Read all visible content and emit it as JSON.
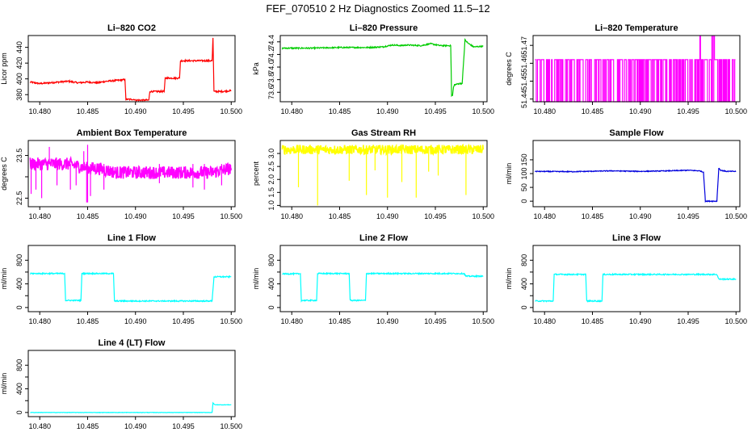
{
  "page": {
    "title": "FEF_070510  2 Hz Diagnostics Zoomed 11.5–12"
  },
  "chart_data": [
    {
      "type": "line",
      "title": "Li–820 CO2",
      "ylabel": "Licor ppm",
      "color": "#ff0000",
      "xlim": [
        10.4788,
        10.5004
      ],
      "ylim": [
        371,
        455
      ],
      "xticks": [
        10.48,
        10.485,
        10.49,
        10.495,
        10.5
      ],
      "xtick_labels": [
        "10.480",
        "10.485",
        "10.490",
        "10.495",
        "10.500"
      ],
      "yticks": [
        380,
        400,
        420,
        440
      ],
      "ytick_labels": [
        "380",
        "400",
        "420",
        "440"
      ],
      "x": [
        10.479,
        10.48,
        10.481,
        10.482,
        10.483,
        10.484,
        10.485,
        10.486,
        10.487,
        10.488,
        10.4889,
        10.489,
        10.4899,
        10.49,
        10.4914,
        10.4915,
        10.493,
        10.4931,
        10.4946,
        10.4947,
        10.498,
        10.4981,
        10.4982,
        10.499,
        10.5
      ],
      "y": [
        396,
        394,
        395,
        396,
        397,
        395,
        396,
        395,
        397,
        398,
        399,
        374,
        374,
        373,
        373,
        384,
        384,
        401,
        401,
        423,
        423,
        452,
        384,
        384,
        385
      ],
      "noise": 1
    },
    {
      "type": "line",
      "title": "Li–820 Pressure",
      "ylabel": "kPa",
      "color": "#00cc00",
      "xlim": [
        10.4788,
        10.5004
      ],
      "ylim": [
        73.45,
        74.5
      ],
      "xticks": [
        10.48,
        10.485,
        10.49,
        10.495,
        10.5
      ],
      "xtick_labels": [
        "10.480",
        "10.485",
        "10.490",
        "10.495",
        "10.500"
      ],
      "yticks": [
        73.6,
        73.8,
        74.0,
        74.2,
        74.4
      ],
      "ytick_labels": [
        "73.6",
        "73.8",
        "74.0",
        "74.2",
        "74.4"
      ],
      "x": [
        10.479,
        10.482,
        10.485,
        10.488,
        10.4895,
        10.4905,
        10.4915,
        10.492,
        10.4935,
        10.4945,
        10.4955,
        10.4966,
        10.4967,
        10.4968,
        10.4969,
        10.497,
        10.4976,
        10.4978,
        10.498,
        10.4981,
        10.4984,
        10.499,
        10.5
      ],
      "y": [
        74.3,
        74.3,
        74.31,
        74.31,
        74.32,
        74.35,
        74.34,
        74.35,
        74.34,
        74.37,
        74.34,
        74.34,
        73.55,
        73.55,
        73.68,
        73.72,
        73.74,
        73.74,
        74.2,
        74.43,
        74.38,
        74.32,
        74.33
      ],
      "noise": 0.01
    },
    {
      "type": "line",
      "title": "Li–820 Temperature",
      "ylabel": "degrees C",
      "color": "#ff00ff",
      "xlim": [
        10.4788,
        10.5004
      ],
      "ylim": [
        51.4385,
        51.4755
      ],
      "xticks": [
        10.48,
        10.485,
        10.49,
        10.495,
        10.5
      ],
      "xtick_labels": [
        "10.480",
        "10.485",
        "10.490",
        "10.495",
        "10.500"
      ],
      "yticks": [
        51.44,
        51.45,
        51.46,
        51.47
      ],
      "ytick_labels": [
        "51.44",
        "51.45",
        "51.46",
        "51.47"
      ],
      "x": [
        10.479,
        10.5
      ],
      "y": [
        51.462,
        51.462
      ],
      "pattern": "binary",
      "levels": [
        51.4385,
        51.462,
        51.475
      ],
      "noise": 0
    },
    {
      "type": "line",
      "title": "Ambient Box Temperature",
      "ylabel": "degrees C",
      "color": "#ff00ff",
      "xlim": [
        10.4788,
        10.5004
      ],
      "ylim": [
        22.3,
        23.85
      ],
      "xticks": [
        10.48,
        10.485,
        10.49,
        10.495,
        10.5
      ],
      "xtick_labels": [
        "10.480",
        "10.485",
        "10.490",
        "10.495",
        "10.500"
      ],
      "yticks": [
        22.5,
        23.0,
        23.5
      ],
      "ytick_labels": [
        "22.5",
        "",
        "23.5"
      ],
      "x": [
        10.479,
        10.481,
        10.483,
        10.485,
        10.486,
        10.488,
        10.49,
        10.492,
        10.494,
        10.496,
        10.498,
        10.5
      ],
      "y": [
        23.3,
        23.3,
        23.3,
        23.2,
        23.2,
        23.1,
        23.1,
        23.1,
        23.1,
        23.1,
        23.1,
        23.2
      ],
      "noise": 0.15,
      "spikes": [
        [
          10.4791,
          22.6
        ],
        [
          10.4796,
          22.7
        ],
        [
          10.4802,
          22.5
        ],
        [
          10.4818,
          22.8
        ],
        [
          10.4832,
          22.7
        ],
        [
          10.4838,
          22.8
        ],
        [
          10.4849,
          22.4
        ],
        [
          10.485,
          22.4
        ],
        [
          10.4853,
          22.55
        ],
        [
          10.4867,
          22.7
        ],
        [
          10.4925,
          22.85
        ],
        [
          10.496,
          22.75
        ],
        [
          10.4972,
          22.7
        ],
        [
          10.499,
          22.8
        ],
        [
          10.485,
          23.75
        ],
        [
          10.481,
          23.7
        ],
        [
          10.4846,
          23.6
        ]
      ]
    },
    {
      "type": "line",
      "title": "Gas Stream RH",
      "ylabel": "percent",
      "color": "#ffff00",
      "xlim": [
        10.4788,
        10.5004
      ],
      "ylim": [
        0.95,
        3.5
      ],
      "xticks": [
        10.48,
        10.485,
        10.49,
        10.495,
        10.5
      ],
      "xtick_labels": [
        "10.480",
        "10.485",
        "10.490",
        "10.495",
        "10.500"
      ],
      "yticks": [
        1.0,
        1.5,
        2.0,
        2.5,
        3.0
      ],
      "ytick_labels": [
        "1.0",
        "1.5",
        "2.0",
        "2.5",
        "3.0"
      ],
      "x": [
        10.479,
        10.5
      ],
      "y": [
        3.15,
        3.15
      ],
      "noise": 0.18,
      "spikes": [
        [
          10.4807,
          1.7
        ],
        [
          10.4827,
          1.0
        ],
        [
          10.486,
          1.95
        ],
        [
          10.4878,
          1.4
        ],
        [
          10.4887,
          2.35
        ],
        [
          10.49,
          1.3
        ],
        [
          10.4915,
          1.9
        ],
        [
          10.493,
          1.3
        ],
        [
          10.4943,
          2.3
        ],
        [
          10.4953,
          2.15
        ],
        [
          10.4982,
          1.4
        ]
      ]
    },
    {
      "type": "line",
      "title": "Sample Flow",
      "ylabel": "ml/min",
      "color": "#0000dd",
      "xlim": [
        10.4788,
        10.5004
      ],
      "ylim": [
        -20,
        220
      ],
      "xticks": [
        10.48,
        10.485,
        10.49,
        10.495,
        10.5
      ],
      "xtick_labels": [
        "10.480",
        "10.485",
        "10.490",
        "10.495",
        "10.500"
      ],
      "yticks": [
        0,
        50,
        100,
        150
      ],
      "ytick_labels": [
        "0",
        "50",
        "100",
        "150"
      ],
      "x": [
        10.479,
        10.483,
        10.487,
        10.49,
        10.493,
        10.495,
        10.4962,
        10.4966,
        10.4968,
        10.498,
        10.4982,
        10.4984,
        10.499,
        10.5
      ],
      "y": [
        108,
        107,
        110,
        108,
        110,
        112,
        110,
        105,
        0,
        0,
        120,
        112,
        108,
        108
      ],
      "noise": 1.5
    },
    {
      "type": "line",
      "title": "Line 1 Flow",
      "ylabel": "ml/min",
      "color": "#00ffff",
      "xlim": [
        10.4788,
        10.5004
      ],
      "ylim": [
        -70,
        1050
      ],
      "xticks": [
        10.48,
        10.485,
        10.49,
        10.495,
        10.5
      ],
      "xtick_labels": [
        "10.480",
        "10.485",
        "10.490",
        "10.495",
        "10.500"
      ],
      "yticks": [
        0,
        200,
        400,
        600,
        800
      ],
      "ytick_labels": [
        "0",
        "",
        "400",
        "",
        "800"
      ],
      "x": [
        10.479,
        10.4826,
        10.4827,
        10.4843,
        10.4844,
        10.4877,
        10.4878,
        10.498,
        10.4982,
        10.499,
        10.5
      ],
      "y": [
        575,
        575,
        120,
        120,
        575,
        575,
        110,
        110,
        520,
        520,
        520
      ],
      "noise": 10
    },
    {
      "type": "line",
      "title": "Line 2 Flow",
      "ylabel": "ml/min",
      "color": "#00ffff",
      "xlim": [
        10.4788,
        10.5004
      ],
      "ylim": [
        -70,
        1050
      ],
      "xticks": [
        10.48,
        10.485,
        10.49,
        10.495,
        10.5
      ],
      "xtick_labels": [
        "10.480",
        "10.485",
        "10.490",
        "10.495",
        "10.500"
      ],
      "yticks": [
        0,
        200,
        400,
        600,
        800
      ],
      "ytick_labels": [
        "0",
        "",
        "400",
        "",
        "800"
      ],
      "x": [
        10.479,
        10.4809,
        10.481,
        10.4826,
        10.4827,
        10.486,
        10.4861,
        10.4877,
        10.4878,
        10.495,
        10.498,
        10.4982,
        10.5
      ],
      "y": [
        570,
        570,
        120,
        120,
        575,
        575,
        120,
        120,
        575,
        575,
        575,
        530,
        530
      ],
      "noise": 10
    },
    {
      "type": "line",
      "title": "Line 3 Flow",
      "ylabel": "ml/min",
      "color": "#00ffff",
      "xlim": [
        10.4788,
        10.5004
      ],
      "ylim": [
        -70,
        1050
      ],
      "xticks": [
        10.48,
        10.485,
        10.49,
        10.495,
        10.5
      ],
      "xtick_labels": [
        "10.480",
        "10.485",
        "10.490",
        "10.495",
        "10.500"
      ],
      "yticks": [
        0,
        200,
        400,
        600,
        800
      ],
      "ytick_labels": [
        "0",
        "",
        "400",
        "",
        "800"
      ],
      "x": [
        10.479,
        10.4809,
        10.481,
        10.4843,
        10.4844,
        10.486,
        10.4861,
        10.495,
        10.498,
        10.4982,
        10.5
      ],
      "y": [
        110,
        110,
        560,
        560,
        110,
        110,
        560,
        560,
        560,
        480,
        480
      ],
      "noise": 10
    },
    {
      "type": "line",
      "title": "Line 4 (LT) Flow",
      "ylabel": "ml/min",
      "color": "#00ffff",
      "xlim": [
        10.4788,
        10.5004
      ],
      "ylim": [
        -70,
        1050
      ],
      "xticks": [
        10.48,
        10.485,
        10.49,
        10.495,
        10.5
      ],
      "xtick_labels": [
        "10.480",
        "10.485",
        "10.490",
        "10.495",
        "10.500"
      ],
      "yticks": [
        0,
        200,
        400,
        600,
        800
      ],
      "ytick_labels": [
        "0",
        "",
        "400",
        "",
        "800"
      ],
      "x": [
        10.479,
        10.49,
        10.498,
        10.4981,
        10.4983,
        10.499,
        10.5
      ],
      "y": [
        0,
        0,
        0,
        160,
        130,
        130,
        130
      ],
      "noise": 3
    }
  ]
}
